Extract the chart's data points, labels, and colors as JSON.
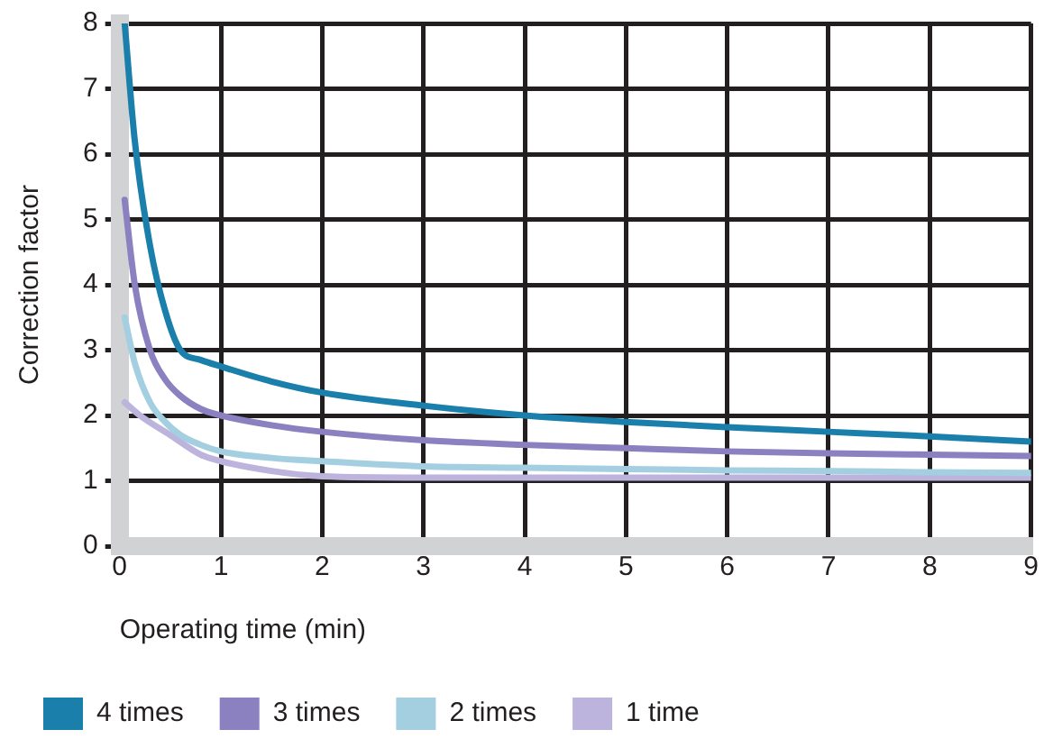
{
  "chart_data": {
    "type": "line",
    "xlabel": "Operating time (min)",
    "ylabel": "Correction factor",
    "xlim": [
      0,
      9
    ],
    "xticks": [
      0,
      1,
      2,
      3,
      4,
      5,
      6,
      7,
      8,
      9
    ],
    "ylim": [
      0,
      8
    ],
    "yticks": [
      0,
      1,
      2,
      3,
      4,
      5,
      6,
      7,
      8
    ],
    "grid": true,
    "legend": "bottom",
    "marker": "none",
    "line_style": "solid",
    "series": [
      {
        "name": "4 times",
        "color": "#1a7fab",
        "x": [
          0.05,
          0.15,
          0.3,
          0.45,
          0.6,
          0.8,
          1,
          1.5,
          2,
          3,
          4,
          5,
          6,
          7,
          8,
          9
        ],
        "values": [
          8,
          6.2,
          4.6,
          3.6,
          3.0,
          2.85,
          2.75,
          2.52,
          2.35,
          2.15,
          2.0,
          1.9,
          1.82,
          1.75,
          1.68,
          1.6
        ]
      },
      {
        "name": "3 times",
        "color": "#8b80c0",
        "x": [
          0.05,
          0.15,
          0.3,
          0.45,
          0.6,
          0.8,
          1,
          1.5,
          2,
          3,
          4,
          5,
          6,
          7,
          8,
          9
        ],
        "values": [
          5.3,
          4.0,
          3.0,
          2.55,
          2.3,
          2.1,
          2.0,
          1.85,
          1.75,
          1.62,
          1.55,
          1.5,
          1.45,
          1.42,
          1.4,
          1.38
        ]
      },
      {
        "name": "2 times",
        "color": "#a3cfe0",
        "x": [
          0.05,
          0.15,
          0.3,
          0.45,
          0.6,
          0.8,
          1,
          1.5,
          2,
          3,
          4,
          5,
          6,
          7,
          8,
          9
        ],
        "values": [
          3.5,
          2.8,
          2.2,
          1.9,
          1.7,
          1.55,
          1.45,
          1.35,
          1.3,
          1.22,
          1.2,
          1.18,
          1.16,
          1.15,
          1.13,
          1.12
        ]
      },
      {
        "name": "1 time",
        "color": "#bcb4dc",
        "x": [
          0.05,
          0.2,
          0.5,
          0.8,
          1,
          1.5,
          2,
          3,
          4,
          5,
          6,
          7,
          8,
          9
        ],
        "values": [
          2.2,
          2.0,
          1.7,
          1.4,
          1.3,
          1.15,
          1.07,
          1.05,
          1.05,
          1.05,
          1.05,
          1.05,
          1.05,
          1.05
        ]
      }
    ]
  }
}
